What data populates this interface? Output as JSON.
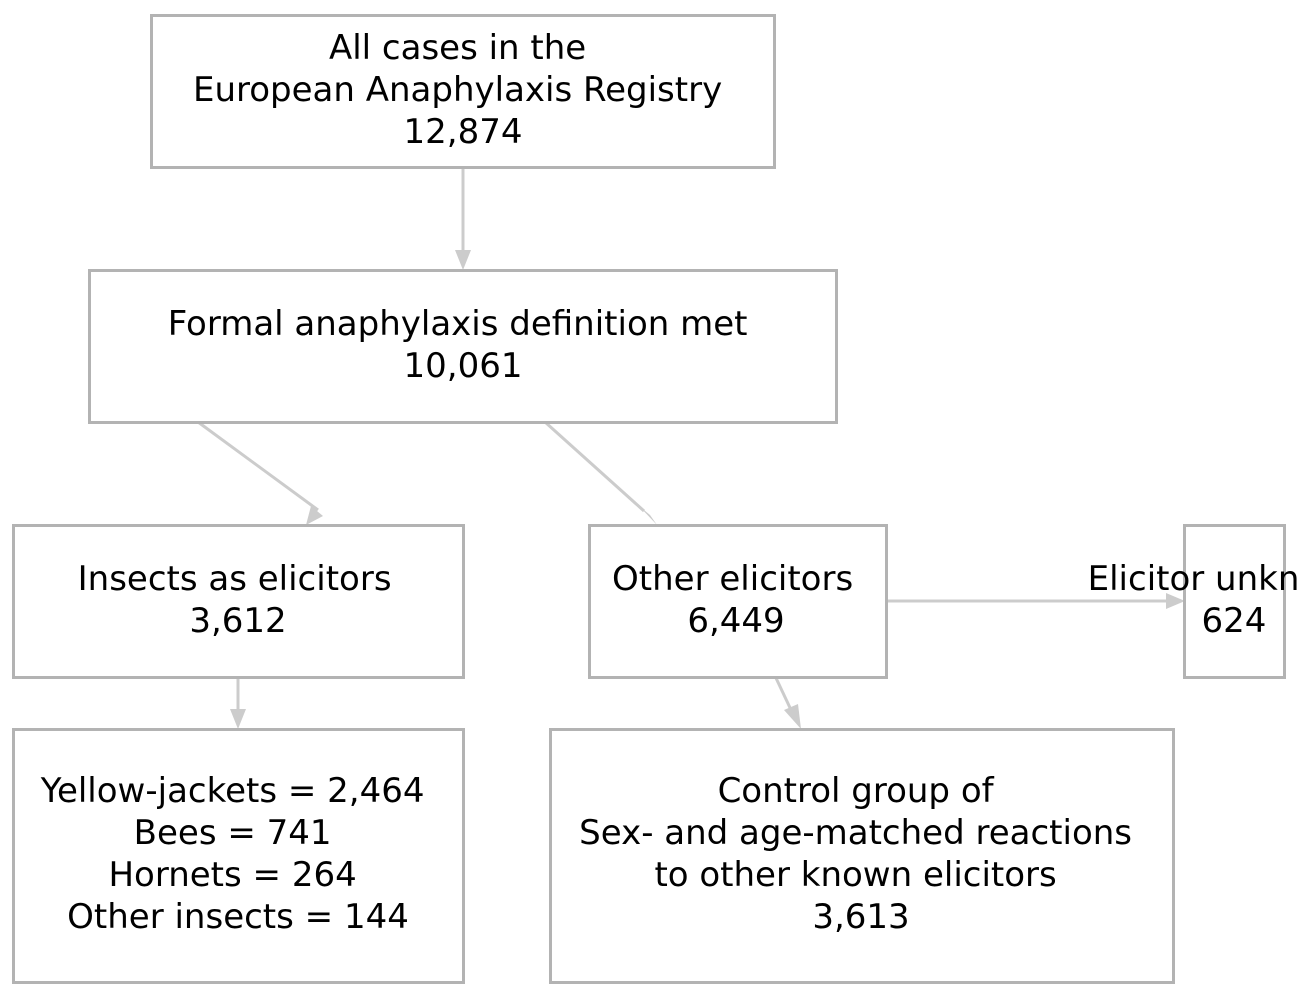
{
  "colors": {
    "box_stroke": "#b3b3b3",
    "edge": "#cccccc",
    "text": "#000000",
    "background": "#ffffff"
  },
  "nodes": {
    "all_cases": {
      "lines": [
        "All cases in the",
        "European Anaphylaxis Registry",
        "12,874"
      ]
    },
    "formal_def": {
      "lines": [
        "Formal anaphylaxis definition met",
        "10,061"
      ]
    },
    "insects": {
      "lines": [
        "Insects as elicitors",
        "3,612"
      ]
    },
    "other": {
      "lines": [
        "Other elicitors",
        "6,449"
      ]
    },
    "unknown": {
      "lines": [
        "Elicitor unknown",
        "624"
      ]
    },
    "insect_types": {
      "lines": [
        "Yellow-jackets = 2,464",
        "Bees = 741",
        "Hornets = 264",
        "Other insects = 144"
      ]
    },
    "control": {
      "lines": [
        "Control group of",
        "Sex- and age-matched reactions",
        "to other known elicitors",
        "3,613"
      ]
    }
  },
  "edges": [
    {
      "from": "all_cases",
      "to": "formal_def"
    },
    {
      "from": "formal_def",
      "to": "insects"
    },
    {
      "from": "formal_def",
      "to": "other"
    },
    {
      "from": "other",
      "to": "unknown"
    },
    {
      "from": "insects",
      "to": "insect_types"
    },
    {
      "from": "other",
      "to": "control"
    }
  ]
}
